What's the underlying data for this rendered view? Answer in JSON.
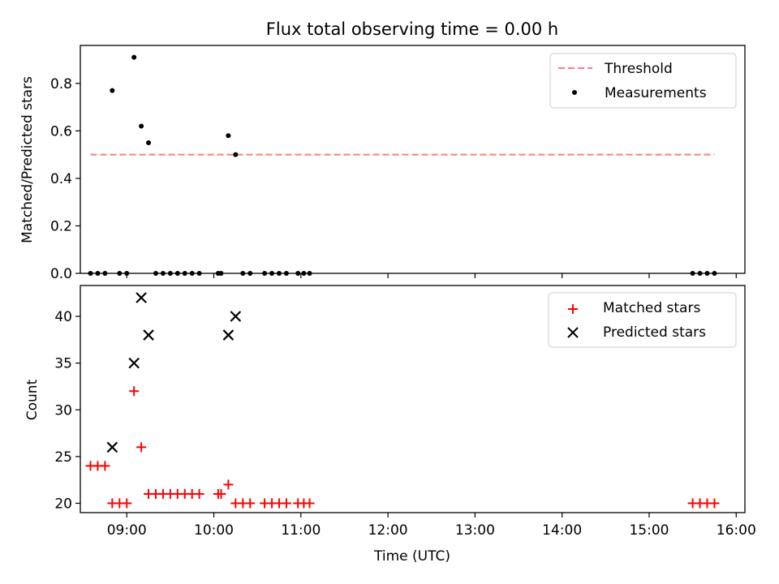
{
  "chart_data": [
    {
      "type": "scatter",
      "title": "Flux total observing time = 0.00 h",
      "ylabel": "Matched/Predicted stars",
      "xlabel": "",
      "xlim": [
        "08:28",
        "16:06"
      ],
      "ylim": [
        0,
        0.96
      ],
      "yticks": [
        0.0,
        0.2,
        0.4,
        0.6,
        0.8
      ],
      "ytick_labels": [
        "0.0",
        "0.2",
        "0.4",
        "0.6",
        "0.8"
      ],
      "xticks": [
        "09:00",
        "10:00",
        "11:00",
        "12:00",
        "13:00",
        "14:00",
        "15:00",
        "16:00"
      ],
      "xtick_labels_visible": false,
      "threshold": {
        "name": "Threshold",
        "value": 0.5,
        "x": [
          "08:35",
          "15:45"
        ],
        "color": "#ff7b7b",
        "style": "dashed"
      },
      "series": [
        {
          "name": "Measurements",
          "color": "#000000",
          "marker": "dot",
          "points": [
            [
              "08:35",
              0.0
            ],
            [
              "08:40",
              0.0
            ],
            [
              "08:45",
              0.0
            ],
            [
              "08:50",
              0.77
            ],
            [
              "08:55",
              0.0
            ],
            [
              "09:00",
              0.0
            ],
            [
              "09:05",
              0.91
            ],
            [
              "09:10",
              0.62
            ],
            [
              "09:15",
              0.55
            ],
            [
              "09:20",
              0.0
            ],
            [
              "09:25",
              0.0
            ],
            [
              "09:30",
              0.0
            ],
            [
              "09:35",
              0.0
            ],
            [
              "09:40",
              0.0
            ],
            [
              "09:45",
              0.0
            ],
            [
              "09:50",
              0.0
            ],
            [
              "10:03",
              0.0
            ],
            [
              "10:05",
              0.0
            ],
            [
              "10:10",
              0.58
            ],
            [
              "10:15",
              0.5
            ],
            [
              "10:20",
              0.0
            ],
            [
              "10:25",
              0.0
            ],
            [
              "10:35",
              0.0
            ],
            [
              "10:40",
              0.0
            ],
            [
              "10:45",
              0.0
            ],
            [
              "10:50",
              0.0
            ],
            [
              "10:58",
              0.0
            ],
            [
              "11:02",
              0.0
            ],
            [
              "11:06",
              0.0
            ],
            [
              "15:30",
              0.0
            ],
            [
              "15:35",
              0.0
            ],
            [
              "15:40",
              0.0
            ],
            [
              "15:45",
              0.0
            ]
          ]
        }
      ],
      "legend": {
        "placement": "top-right",
        "entries": [
          "Threshold",
          "Measurements"
        ]
      }
    },
    {
      "type": "scatter",
      "title": "",
      "ylabel": "Count",
      "xlabel": "Time (UTC)",
      "xlim": [
        "08:28",
        "16:06"
      ],
      "ylim": [
        19,
        43.3
      ],
      "yticks": [
        20,
        25,
        30,
        35,
        40
      ],
      "ytick_labels": [
        "20",
        "25",
        "30",
        "35",
        "40"
      ],
      "xticks": [
        "09:00",
        "10:00",
        "11:00",
        "12:00",
        "13:00",
        "14:00",
        "15:00",
        "16:00"
      ],
      "xtick_labels": [
        "09:00",
        "10:00",
        "11:00",
        "12:00",
        "13:00",
        "14:00",
        "15:00",
        "16:00"
      ],
      "series": [
        {
          "name": "Matched stars",
          "color": "#ff0000",
          "marker": "plus",
          "points": [
            [
              "08:35",
              24
            ],
            [
              "08:40",
              24
            ],
            [
              "08:45",
              24
            ],
            [
              "08:50",
              20
            ],
            [
              "08:55",
              20
            ],
            [
              "09:00",
              20
            ],
            [
              "09:05",
              32
            ],
            [
              "09:10",
              26
            ],
            [
              "09:15",
              21
            ],
            [
              "09:20",
              21
            ],
            [
              "09:25",
              21
            ],
            [
              "09:30",
              21
            ],
            [
              "09:35",
              21
            ],
            [
              "09:40",
              21
            ],
            [
              "09:45",
              21
            ],
            [
              "09:50",
              21
            ],
            [
              "10:03",
              21
            ],
            [
              "10:05",
              21
            ],
            [
              "10:10",
              22
            ],
            [
              "10:15",
              20
            ],
            [
              "10:20",
              20
            ],
            [
              "10:25",
              20
            ],
            [
              "10:35",
              20
            ],
            [
              "10:40",
              20
            ],
            [
              "10:45",
              20
            ],
            [
              "10:50",
              20
            ],
            [
              "10:58",
              20
            ],
            [
              "11:02",
              20
            ],
            [
              "11:06",
              20
            ],
            [
              "15:30",
              20
            ],
            [
              "15:35",
              20
            ],
            [
              "15:40",
              20
            ],
            [
              "15:45",
              20
            ]
          ]
        },
        {
          "name": "Predicted stars",
          "color": "#000000",
          "marker": "x",
          "points": [
            [
              "08:50",
              26
            ],
            [
              "09:05",
              35
            ],
            [
              "09:10",
              42
            ],
            [
              "09:15",
              38
            ],
            [
              "10:10",
              38
            ],
            [
              "10:15",
              40
            ]
          ]
        }
      ],
      "legend": {
        "placement": "top-right",
        "entries": [
          "Matched stars",
          "Predicted stars"
        ]
      }
    }
  ]
}
